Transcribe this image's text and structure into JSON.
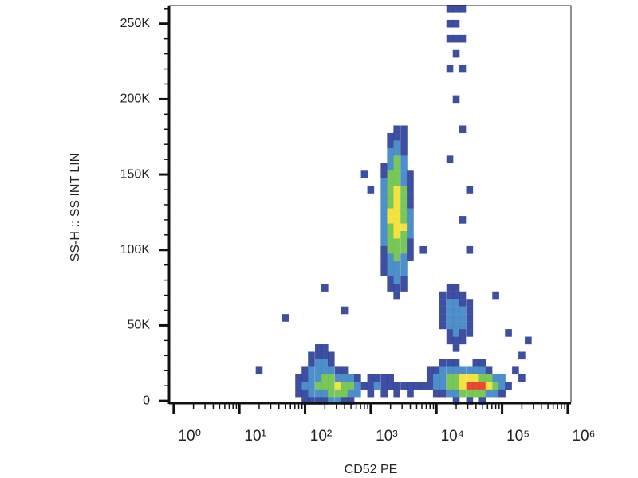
{
  "chart_data": {
    "type": "density",
    "x_label": "CD52 PE",
    "y_label": "SS-H :: SS INT LIN",
    "xscale": "log",
    "xlim": [
      0.85,
      1120000
    ],
    "ylim": [
      -1000,
      262000
    ],
    "xticks": [
      {
        "value": 1,
        "label": "10⁰"
      },
      {
        "value": 10,
        "label": "10¹"
      },
      {
        "value": 100,
        "label": "10²"
      },
      {
        "value": 1000,
        "label": "10³"
      },
      {
        "value": 10000,
        "label": "10⁴"
      },
      {
        "value": 100000,
        "label": "10⁵"
      },
      {
        "value": 1000000,
        "label": "10⁶"
      }
    ],
    "xminorticks": [
      2,
      3,
      4,
      5,
      6,
      7,
      8,
      9,
      20,
      30,
      40,
      50,
      60,
      70,
      80,
      90,
      200,
      300,
      400,
      500,
      600,
      700,
      800,
      900,
      2000,
      3000,
      4000,
      5000,
      6000,
      7000,
      8000,
      9000,
      20000,
      30000,
      40000,
      50000,
      60000,
      70000,
      80000,
      90000,
      200000,
      300000,
      400000,
      500000,
      600000,
      700000,
      800000,
      900000
    ],
    "yticks": [
      0,
      {
        "value": 50000,
        "label": "50K"
      },
      {
        "value": 100000,
        "label": "100K"
      },
      {
        "value": 150000,
        "label": "150K"
      },
      {
        "value": 200000,
        "label": "200K"
      },
      {
        "value": 250000,
        "label": "250K"
      }
    ],
    "yminorticks": [
      10000,
      20000,
      30000,
      40000,
      60000,
      70000,
      80000,
      90000,
      110000,
      120000,
      130000,
      140000,
      160000,
      170000,
      180000,
      190000,
      210000,
      220000,
      230000,
      240000,
      260000
    ],
    "colormap": [
      "#2e3f98",
      "#3f86c6",
      "#6cc24a",
      "#f2e030",
      "#e63a1e"
    ],
    "rows": [
      {
        "y": 260000,
        "x": [
          16000,
          20000,
          25000
        ],
        "density": [
          1,
          1,
          1
        ]
      },
      {
        "y": 250000,
        "x": [
          16000,
          20000
        ],
        "density": [
          1,
          1
        ]
      },
      {
        "y": 240000,
        "x": [
          16000,
          20000,
          25000
        ],
        "density": [
          1,
          1,
          1
        ]
      },
      {
        "y": 230000,
        "x": [
          20000
        ],
        "density": [
          1
        ]
      },
      {
        "y": 220000,
        "x": [
          16000,
          25000
        ],
        "density": [
          1,
          1
        ]
      },
      {
        "y": 200000,
        "x": [
          20000
        ],
        "density": [
          1
        ]
      },
      {
        "y": 180000,
        "x": [
          2500,
          3200,
          25000
        ],
        "density": [
          1,
          1,
          1
        ]
      },
      {
        "y": 175000,
        "x": [
          2000,
          2500,
          3200
        ],
        "density": [
          1,
          1,
          1
        ]
      },
      {
        "y": 170000,
        "x": [
          2000,
          2500,
          3200
        ],
        "density": [
          1,
          2,
          1
        ]
      },
      {
        "y": 165000,
        "x": [
          2000,
          2500,
          3200
        ],
        "density": [
          2,
          2,
          1
        ]
      },
      {
        "y": 160000,
        "x": [
          2000,
          2500,
          3200,
          16000
        ],
        "density": [
          2,
          3,
          2,
          1
        ]
      },
      {
        "y": 155000,
        "x": [
          1600,
          2000,
          2500,
          3200
        ],
        "density": [
          1,
          2,
          3,
          2
        ]
      },
      {
        "y": 150000,
        "x": [
          800,
          1600,
          2000,
          2500,
          3200,
          4000
        ],
        "density": [
          1,
          1,
          3,
          3,
          2,
          1
        ]
      },
      {
        "y": 145000,
        "x": [
          1600,
          2000,
          2500,
          3200,
          4000
        ],
        "density": [
          2,
          3,
          3,
          2,
          1
        ]
      },
      {
        "y": 140000,
        "x": [
          1000,
          1600,
          2000,
          2500,
          3200,
          4000,
          32000
        ],
        "density": [
          1,
          2,
          3,
          4,
          3,
          1,
          1
        ]
      },
      {
        "y": 135000,
        "x": [
          1600,
          2000,
          2500,
          3200,
          4000
        ],
        "density": [
          2,
          3,
          4,
          3,
          1
        ]
      },
      {
        "y": 130000,
        "x": [
          1600,
          2000,
          2500,
          3200,
          4000
        ],
        "density": [
          2,
          3,
          4,
          3,
          1
        ]
      },
      {
        "y": 125000,
        "x": [
          1600,
          2000,
          2500,
          3200,
          4000
        ],
        "density": [
          2,
          4,
          4,
          3,
          2
        ]
      },
      {
        "y": 120000,
        "x": [
          1600,
          2000,
          2500,
          3200,
          4000,
          25000
        ],
        "density": [
          2,
          4,
          4,
          3,
          2,
          1
        ]
      },
      {
        "y": 115000,
        "x": [
          1600,
          2000,
          2500,
          3200,
          4000
        ],
        "density": [
          2,
          3,
          4,
          4,
          2
        ]
      },
      {
        "y": 110000,
        "x": [
          1600,
          2000,
          2500,
          3200,
          4000
        ],
        "density": [
          2,
          3,
          4,
          3,
          2
        ]
      },
      {
        "y": 105000,
        "x": [
          1600,
          2000,
          2500,
          3200,
          4000
        ],
        "density": [
          2,
          3,
          3,
          3,
          1
        ]
      },
      {
        "y": 100000,
        "x": [
          1600,
          2000,
          2500,
          3200,
          4000,
          6300,
          32000
        ],
        "density": [
          1,
          3,
          3,
          3,
          1,
          1,
          1
        ]
      },
      {
        "y": 95000,
        "x": [
          1600,
          2000,
          2500,
          3200,
          4000
        ],
        "density": [
          1,
          2,
          3,
          2,
          1
        ]
      },
      {
        "y": 90000,
        "x": [
          1600,
          2000,
          2500,
          3200
        ],
        "density": [
          1,
          2,
          2,
          2
        ]
      },
      {
        "y": 85000,
        "x": [
          1600,
          2000,
          2500,
          3200
        ],
        "density": [
          1,
          2,
          2,
          2
        ]
      },
      {
        "y": 80000,
        "x": [
          2000,
          2500,
          3200
        ],
        "density": [
          1,
          2,
          1
        ]
      },
      {
        "y": 75000,
        "x": [
          200,
          2000,
          2500,
          3200,
          16000,
          20000
        ],
        "density": [
          1,
          1,
          1,
          1,
          1,
          1
        ]
      },
      {
        "y": 70000,
        "x": [
          2500,
          12500,
          16000,
          20000,
          25000,
          80000
        ],
        "density": [
          1,
          1,
          1,
          1,
          1,
          1
        ]
      },
      {
        "y": 65000,
        "x": [
          12500,
          16000,
          20000,
          25000,
          32000
        ],
        "density": [
          1,
          2,
          2,
          1,
          1
        ]
      },
      {
        "y": 60000,
        "x": [
          400,
          12500,
          16000,
          20000,
          25000,
          32000
        ],
        "density": [
          1,
          1,
          2,
          2,
          2,
          1
        ]
      },
      {
        "y": 55000,
        "x": [
          50,
          12500,
          16000,
          20000,
          25000,
          32000
        ],
        "density": [
          1,
          1,
          2,
          2,
          2,
          1
        ]
      },
      {
        "y": 50000,
        "x": [
          12500,
          16000,
          20000,
          25000,
          32000
        ],
        "density": [
          1,
          2,
          2,
          2,
          1
        ]
      },
      {
        "y": 45000,
        "x": [
          16000,
          20000,
          25000,
          32000,
          125000
        ],
        "density": [
          1,
          2,
          1,
          1,
          1
        ]
      },
      {
        "y": 40000,
        "x": [
          16000,
          20000,
          25000,
          250000
        ],
        "density": [
          1,
          1,
          1,
          1
        ]
      },
      {
        "y": 35000,
        "x": [
          160,
          200,
          20000
        ],
        "density": [
          1,
          1,
          1
        ]
      },
      {
        "y": 30000,
        "x": [
          125,
          160,
          200,
          250,
          200000
        ],
        "density": [
          1,
          1,
          1,
          1,
          1
        ]
      },
      {
        "y": 25000,
        "x": [
          125,
          160,
          200,
          250,
          12500,
          16000,
          20000,
          40000,
          50000
        ],
        "density": [
          1,
          2,
          2,
          1,
          1,
          1,
          1,
          1,
          1
        ]
      },
      {
        "y": 20000,
        "x": [
          20,
          100,
          125,
          160,
          200,
          250,
          320,
          400,
          8000,
          10000,
          12500,
          16000,
          20000,
          25000,
          32000,
          40000,
          50000,
          63000,
          160000
        ],
        "density": [
          1,
          1,
          2,
          2,
          2,
          2,
          1,
          1,
          1,
          1,
          2,
          2,
          2,
          2,
          2,
          2,
          2,
          1,
          1
        ]
      },
      {
        "y": 15000,
        "x": [
          80,
          100,
          125,
          160,
          200,
          250,
          320,
          400,
          500,
          630,
          1000,
          1250,
          1600,
          2000,
          8000,
          10000,
          12500,
          16000,
          20000,
          25000,
          32000,
          40000,
          50000,
          63000,
          80000,
          100000,
          200000
        ],
        "density": [
          1,
          1,
          2,
          2,
          3,
          3,
          2,
          2,
          2,
          1,
          1,
          1,
          1,
          1,
          1,
          2,
          2,
          3,
          3,
          4,
          4,
          4,
          3,
          3,
          2,
          2,
          1
        ]
      },
      {
        "y": 10000,
        "x": [
          80,
          100,
          125,
          160,
          200,
          250,
          320,
          400,
          500,
          630,
          800,
          1000,
          1250,
          1600,
          2000,
          2500,
          3200,
          4000,
          5000,
          6300,
          8000,
          10000,
          12500,
          16000,
          20000,
          25000,
          32000,
          40000,
          50000,
          63000,
          80000,
          100000,
          125000
        ],
        "density": [
          1,
          2,
          2,
          3,
          3,
          3,
          4,
          3,
          3,
          2,
          1,
          1,
          2,
          1,
          1,
          1,
          1,
          1,
          1,
          1,
          1,
          2,
          2,
          3,
          3,
          4,
          5,
          5,
          5,
          4,
          3,
          2,
          1
        ]
      },
      {
        "y": 5000,
        "x": [
          80,
          100,
          125,
          160,
          200,
          250,
          320,
          400,
          500,
          630,
          1000,
          1600,
          2500,
          4000,
          10000,
          12500,
          16000,
          20000,
          25000,
          32000,
          40000,
          50000,
          63000,
          80000,
          100000
        ],
        "density": [
          1,
          1,
          2,
          2,
          2,
          3,
          3,
          3,
          2,
          2,
          1,
          1,
          1,
          1,
          1,
          1,
          2,
          2,
          3,
          3,
          3,
          3,
          2,
          2,
          1
        ]
      },
      {
        "y": 0,
        "x": [
          100,
          125,
          160,
          200,
          250,
          320,
          400,
          500,
          20000,
          32000,
          50000
        ],
        "density": [
          1,
          1,
          1,
          1,
          2,
          2,
          1,
          1,
          1,
          1,
          1
        ]
      }
    ]
  }
}
